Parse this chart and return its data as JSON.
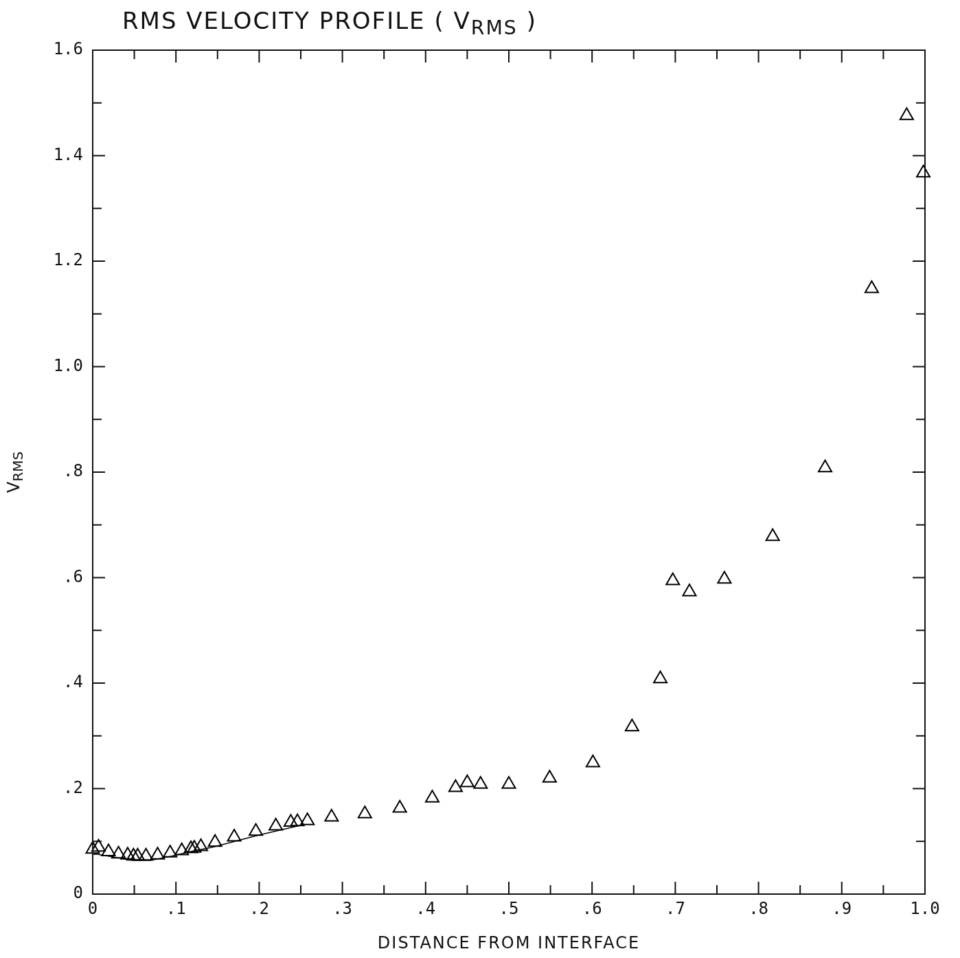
{
  "chart_data": {
    "type": "scatter",
    "title": "RMS VELOCITY PROFILE ( V$_{RMS}$ )",
    "xlabel": "DISTANCE FROM INTERFACE",
    "ylabel": "V$_{RMS}$",
    "marker": "triangle",
    "grid": false,
    "legend": false,
    "xlim": [
      0,
      1
    ],
    "ylim": [
      0,
      1.6
    ],
    "xticks": [
      {
        "value": 0,
        "label": "0"
      },
      {
        "value": 0.05,
        "label": null
      },
      {
        "value": 0.1,
        "label": ".1"
      },
      {
        "value": 0.15,
        "label": null
      },
      {
        "value": 0.2,
        "label": ".2"
      },
      {
        "value": 0.25,
        "label": null
      },
      {
        "value": 0.3,
        "label": ".3"
      },
      {
        "value": 0.35,
        "label": null
      },
      {
        "value": 0.4,
        "label": ".4"
      },
      {
        "value": 0.45,
        "label": null
      },
      {
        "value": 0.5,
        "label": ".5"
      },
      {
        "value": 0.55,
        "label": null
      },
      {
        "value": 0.6,
        "label": ".6"
      },
      {
        "value": 0.65,
        "label": null
      },
      {
        "value": 0.7,
        "label": ".7"
      },
      {
        "value": 0.75,
        "label": null
      },
      {
        "value": 0.8,
        "label": ".8"
      },
      {
        "value": 0.85,
        "label": null
      },
      {
        "value": 0.9,
        "label": ".9"
      },
      {
        "value": 0.95,
        "label": null
      },
      {
        "value": 1,
        "label": "1.0"
      }
    ],
    "yticks": [
      {
        "value": 0,
        "label": "0"
      },
      {
        "value": 0.1,
        "label": null
      },
      {
        "value": 0.2,
        "label": ".2"
      },
      {
        "value": 0.3,
        "label": null
      },
      {
        "value": 0.4,
        "label": ".4"
      },
      {
        "value": 0.5,
        "label": null
      },
      {
        "value": 0.6,
        "label": ".6"
      },
      {
        "value": 0.7,
        "label": null
      },
      {
        "value": 0.8,
        "label": ".8"
      },
      {
        "value": 0.9,
        "label": null
      },
      {
        "value": 1,
        "label": "1.0"
      },
      {
        "value": 1.1,
        "label": null
      },
      {
        "value": 1.2,
        "label": "1.2"
      },
      {
        "value": 1.3,
        "label": null
      },
      {
        "value": 1.4,
        "label": "1.4"
      },
      {
        "value": 1.5,
        "label": null
      },
      {
        "value": 1.6,
        "label": "1.6"
      }
    ],
    "series": [
      {
        "color": "#000000",
        "x": [
          0,
          0.007,
          0.019,
          0.031,
          0.042,
          0.049,
          0.054,
          0.064,
          0.078,
          0.093,
          0.107,
          0.118,
          0.122,
          0.13,
          0.147,
          0.17,
          0.196,
          0.22,
          0.238,
          0.246,
          0.258,
          0.287,
          0.327,
          0.369,
          0.408,
          0.436,
          0.45,
          0.466,
          0.5,
          0.549,
          0.601,
          0.648,
          0.682,
          0.697,
          0.717,
          0.759,
          0.817,
          0.88,
          0.936,
          0.978,
          0.998
        ],
        "values": [
          0.085,
          0.089,
          0.08,
          0.076,
          0.074,
          0.072,
          0.072,
          0.072,
          0.074,
          0.078,
          0.082,
          0.086,
          0.087,
          0.09,
          0.098,
          0.108,
          0.119,
          0.129,
          0.136,
          0.137,
          0.139,
          0.146,
          0.152,
          0.163,
          0.182,
          0.202,
          0.211,
          0.208,
          0.208,
          0.22,
          0.249,
          0.317,
          0.408,
          0.594,
          0.573,
          0.597,
          0.678,
          0.808,
          1.148,
          1.476,
          1.367
        ]
      },
      {
        "type": "line",
        "marker": "none",
        "color": "#000000",
        "x": [
          0,
          0.004,
          0.048,
          0.07,
          0.095,
          0.122,
          0.144,
          0.2,
          0.254
        ],
        "values": [
          0.075,
          0.076,
          0.064,
          0.064,
          0.072,
          0.082,
          0.089,
          0.112,
          0.132
        ]
      }
    ]
  }
}
